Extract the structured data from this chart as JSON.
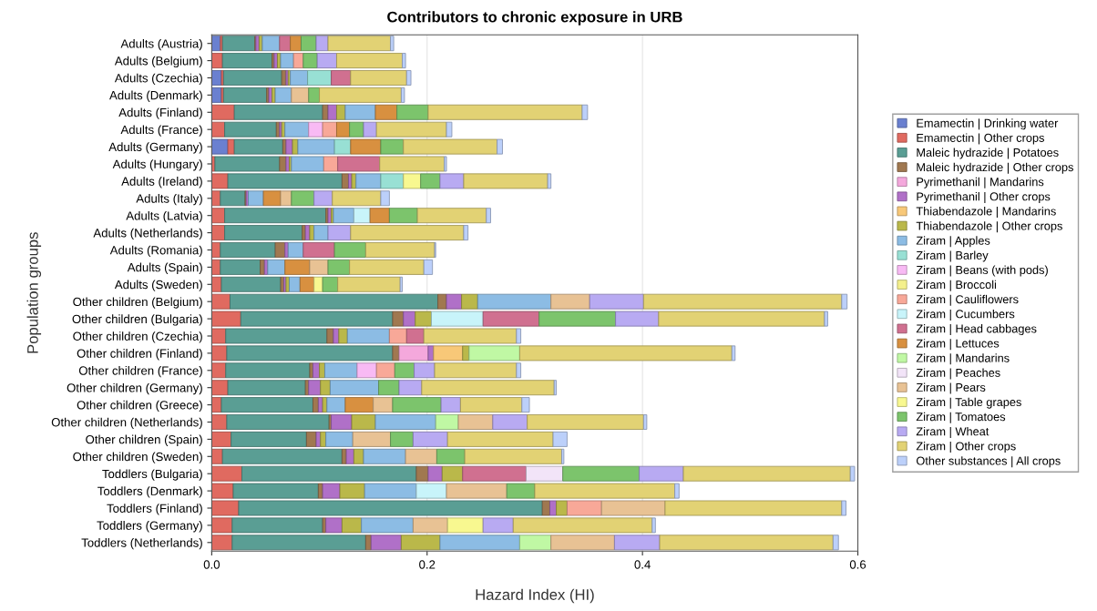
{
  "chart_data": {
    "type": "bar",
    "orientation": "horizontal",
    "stacked": true,
    "title": "Contributors to chronic exposure in URB",
    "xlabel": "Hazard Index (HI)",
    "ylabel": "Population groups",
    "grid": "x",
    "legend": "right",
    "xlim": [
      0,
      0.6
    ],
    "xticks": [
      {
        "value": 0,
        "label": "0.0"
      },
      0.2,
      0.4,
      0.6
    ],
    "categories": [
      "Adults (Austria)",
      "Adults (Belgium)",
      "Adults (Czechia)",
      "Adults (Denmark)",
      "Adults (Finland)",
      "Adults (France)",
      "Adults (Germany)",
      "Adults (Hungary)",
      "Adults (Ireland)",
      "Adults (Italy)",
      "Adults (Latvia)",
      "Adults (Netherlands)",
      "Adults (Romania)",
      "Adults (Spain)",
      "Adults (Sweden)",
      "Other children (Belgium)",
      "Other children (Bulgaria)",
      "Other children (Czechia)",
      "Other children (Finland)",
      "Other children (France)",
      "Other children (Germany)",
      "Other children (Greece)",
      "Other children (Netherlands)",
      "Other children (Spain)",
      "Other children (Sweden)",
      "Toddlers (Bulgaria)",
      "Toddlers (Denmark)",
      "Toddlers (Finland)",
      "Toddlers (Germany)",
      "Toddlers (Netherlands)"
    ],
    "series": [
      {
        "name": "Emamectin | Drinking water",
        "color": "#6a80d0",
        "values": [
          0.008,
          null,
          0.009,
          0.009,
          null,
          null,
          0.015,
          null,
          null,
          null,
          null,
          null,
          null,
          null,
          null,
          null,
          null,
          null,
          null,
          null,
          null,
          null,
          null,
          null,
          null,
          null,
          null,
          null,
          null,
          null
        ]
      },
      {
        "name": "Emamectin | Other crops",
        "color": "#e06a60",
        "values": [
          0.002,
          0.01,
          0.002,
          0.002,
          0.021,
          0.012,
          0.006,
          0.003,
          0.015,
          0.008,
          0.012,
          0.012,
          0.008,
          0.008,
          0.009,
          0.017,
          0.027,
          0.013,
          0.014,
          0.013,
          0.015,
          0.009,
          0.014,
          0.018,
          0.01,
          0.028,
          0.02,
          0.025,
          0.019,
          0.019
        ]
      },
      {
        "name": "Maleic hydrazide | Potatoes",
        "color": "#5a9e94",
        "values": [
          0.03,
          0.046,
          0.054,
          0.04,
          0.082,
          0.048,
          0.045,
          0.06,
          0.106,
          0.023,
          0.094,
          0.072,
          0.051,
          0.037,
          0.055,
          0.193,
          0.141,
          0.094,
          0.154,
          0.078,
          0.072,
          0.085,
          0.095,
          0.07,
          0.111,
          0.162,
          0.079,
          0.282,
          0.084,
          0.124
        ]
      },
      {
        "name": "Maleic hydrazide | Other crops",
        "color": "#a07850",
        "values": [
          0.001,
          0.002,
          0.004,
          0.002,
          0.005,
          0.003,
          0.003,
          0.006,
          0.006,
          0.001,
          0.002,
          0.003,
          0.009,
          0.004,
          0.003,
          0.008,
          0.01,
          0.006,
          0.006,
          0.003,
          0.003,
          0.005,
          0.002,
          0.009,
          0.004,
          0.011,
          0.004,
          0.007,
          0.003,
          0.005
        ]
      },
      {
        "name": "Pyrimethanil | Mandarins",
        "color": "#f4a8dc",
        "values": [
          null,
          null,
          null,
          null,
          null,
          null,
          null,
          null,
          null,
          null,
          null,
          null,
          null,
          null,
          null,
          null,
          null,
          null,
          0.027,
          null,
          null,
          null,
          null,
          null,
          null,
          null,
          null,
          null,
          null,
          null
        ]
      },
      {
        "name": "Pyrimethanil | Other crops",
        "color": "#b070c8",
        "values": [
          0.003,
          0.003,
          0.002,
          0.003,
          0.008,
          0.002,
          0.006,
          0.003,
          0.003,
          0.002,
          0.003,
          0.004,
          0.003,
          0.003,
          0.002,
          0.014,
          0.011,
          0.005,
          0.005,
          0.006,
          0.011,
          0.004,
          0.019,
          0.004,
          0.007,
          0.013,
          0.016,
          0.006,
          0.015,
          0.028
        ]
      },
      {
        "name": "Thiabendazole | Mandarins",
        "color": "#f8c878",
        "values": [
          null,
          null,
          null,
          null,
          null,
          null,
          null,
          null,
          null,
          null,
          null,
          null,
          null,
          null,
          null,
          null,
          null,
          null,
          0.027,
          null,
          null,
          null,
          null,
          null,
          null,
          null,
          null,
          null,
          null,
          null
        ]
      },
      {
        "name": "Thiabendazole | Other crops",
        "color": "#bab84a",
        "values": [
          0.003,
          0.003,
          0.002,
          0.003,
          0.008,
          0.003,
          0.005,
          0.002,
          0.004,
          null,
          0.002,
          0.004,
          null,
          null,
          0.003,
          0.015,
          0.015,
          0.008,
          0.006,
          0.005,
          0.009,
          0.004,
          0.022,
          0.005,
          0.009,
          0.019,
          0.023,
          0.01,
          0.018,
          0.036
        ]
      },
      {
        "name": "Ziram | Apples",
        "color": "#8cbce4",
        "values": [
          0.016,
          0.012,
          0.016,
          0.015,
          0.028,
          0.022,
          0.034,
          0.03,
          0.023,
          0.014,
          0.019,
          0.013,
          0.014,
          0.016,
          0.01,
          0.068,
          null,
          0.039,
          null,
          0.03,
          0.045,
          0.017,
          0.056,
          0.025,
          0.039,
          null,
          0.048,
          null,
          0.048,
          0.074
        ]
      },
      {
        "name": "Ziram | Barley",
        "color": "#98e0d4",
        "values": [
          null,
          null,
          0.022,
          null,
          null,
          null,
          0.015,
          null,
          0.021,
          null,
          null,
          null,
          null,
          null,
          null,
          null,
          null,
          null,
          null,
          null,
          null,
          null,
          null,
          null,
          null,
          null,
          null,
          null,
          null,
          null
        ]
      },
      {
        "name": "Ziram | Beans (with pods)",
        "color": "#f8baf4",
        "values": [
          null,
          null,
          null,
          null,
          null,
          0.013,
          null,
          null,
          null,
          null,
          null,
          null,
          null,
          null,
          null,
          null,
          null,
          null,
          null,
          0.018,
          null,
          null,
          null,
          null,
          null,
          null,
          null,
          null,
          null,
          null
        ]
      },
      {
        "name": "Ziram | Broccoli",
        "color": "#f4f08c",
        "values": [
          null,
          null,
          null,
          null,
          null,
          null,
          null,
          null,
          null,
          null,
          null,
          null,
          null,
          null,
          null,
          null,
          null,
          null,
          null,
          null,
          null,
          null,
          null,
          null,
          null,
          null,
          null,
          null,
          null,
          null
        ]
      },
      {
        "name": "Ziram | Cauliflowers",
        "color": "#f8a898",
        "values": [
          null,
          0.009,
          null,
          null,
          null,
          0.013,
          null,
          0.013,
          null,
          null,
          null,
          null,
          null,
          null,
          null,
          null,
          null,
          0.016,
          null,
          0.017,
          null,
          null,
          null,
          null,
          null,
          null,
          null,
          0.032,
          null,
          null
        ]
      },
      {
        "name": "Ziram | Cucumbers",
        "color": "#c8f4fa",
        "values": [
          null,
          null,
          null,
          null,
          null,
          null,
          null,
          null,
          null,
          null,
          0.015,
          null,
          null,
          null,
          null,
          null,
          0.048,
          null,
          null,
          null,
          null,
          null,
          null,
          null,
          null,
          null,
          0.028,
          null,
          null,
          null
        ]
      },
      {
        "name": "Ziram | Head cabbages",
        "color": "#d07090",
        "values": [
          0.01,
          null,
          0.018,
          null,
          null,
          null,
          null,
          0.039,
          null,
          null,
          null,
          null,
          0.029,
          null,
          null,
          null,
          0.052,
          0.016,
          null,
          null,
          null,
          null,
          null,
          null,
          null,
          0.059,
          null,
          null,
          null,
          null
        ]
      },
      {
        "name": "Ziram | Lettuces",
        "color": "#d89040",
        "values": [
          0.01,
          null,
          null,
          null,
          0.02,
          0.012,
          0.028,
          null,
          null,
          0.016,
          0.018,
          null,
          null,
          0.023,
          0.013,
          null,
          null,
          null,
          null,
          null,
          null,
          0.026,
          null,
          null,
          null,
          null,
          null,
          null,
          null,
          null
        ]
      },
      {
        "name": "Ziram | Mandarins",
        "color": "#c0f8a4",
        "values": [
          null,
          null,
          null,
          null,
          null,
          null,
          null,
          null,
          null,
          null,
          null,
          null,
          null,
          null,
          null,
          null,
          null,
          null,
          0.047,
          null,
          null,
          null,
          0.021,
          null,
          null,
          null,
          null,
          null,
          null,
          0.029
        ]
      },
      {
        "name": "Ziram | Peaches",
        "color": "#f2e4f8",
        "values": [
          null,
          null,
          null,
          null,
          null,
          null,
          null,
          null,
          null,
          null,
          null,
          null,
          null,
          null,
          null,
          null,
          null,
          null,
          null,
          null,
          null,
          null,
          null,
          null,
          null,
          0.034,
          null,
          null,
          null,
          null
        ]
      },
      {
        "name": "Ziram | Pears",
        "color": "#e8c294",
        "values": [
          null,
          null,
          null,
          0.016,
          null,
          null,
          null,
          null,
          null,
          0.01,
          null,
          null,
          null,
          0.017,
          null,
          0.036,
          null,
          null,
          null,
          null,
          null,
          0.018,
          0.032,
          0.035,
          0.029,
          null,
          0.056,
          0.059,
          0.032,
          0.059
        ]
      },
      {
        "name": "Ziram | Table grapes",
        "color": "#f8f890",
        "values": [
          null,
          null,
          null,
          null,
          null,
          null,
          null,
          null,
          0.016,
          null,
          null,
          null,
          null,
          null,
          0.008,
          null,
          null,
          null,
          null,
          null,
          null,
          null,
          null,
          null,
          null,
          null,
          null,
          null,
          0.033,
          null
        ]
      },
      {
        "name": "Ziram | Tomatoes",
        "color": "#7cc46c",
        "values": [
          0.014,
          0.013,
          null,
          0.01,
          0.029,
          0.013,
          0.021,
          null,
          0.018,
          0.021,
          0.026,
          null,
          0.029,
          0.02,
          0.014,
          null,
          0.071,
          null,
          null,
          0.018,
          0.019,
          0.045,
          null,
          0.021,
          0.026,
          0.071,
          0.026,
          null,
          null,
          null
        ]
      },
      {
        "name": "Ziram | Wheat",
        "color": "#b8aaf2",
        "values": [
          0.011,
          0.018,
          null,
          null,
          null,
          0.012,
          null,
          null,
          0.022,
          0.017,
          null,
          0.021,
          null,
          null,
          null,
          0.05,
          0.04,
          null,
          null,
          0.019,
          0.021,
          0.018,
          0.032,
          0.032,
          null,
          0.041,
          null,
          null,
          0.028,
          0.042
        ]
      },
      {
        "name": "Ziram | Other crops",
        "color": "#e2d274",
        "values": [
          0.058,
          0.061,
          0.052,
          0.076,
          0.143,
          0.065,
          0.087,
          0.06,
          0.078,
          0.045,
          0.064,
          0.105,
          0.064,
          0.069,
          0.058,
          0.184,
          0.154,
          0.086,
          0.197,
          0.076,
          0.123,
          0.057,
          0.108,
          0.098,
          0.09,
          0.155,
          0.13,
          0.164,
          0.129,
          0.161
        ]
      },
      {
        "name": "Other substances | All crops",
        "color": "#bcd0fa",
        "values": [
          0.003,
          0.003,
          0.004,
          0.003,
          0.005,
          0.005,
          0.005,
          0.002,
          0.003,
          0.008,
          0.004,
          0.004,
          0.001,
          0.008,
          0.002,
          0.005,
          0.003,
          0.004,
          0.003,
          0.004,
          0.002,
          0.007,
          0.003,
          0.013,
          0.002,
          0.004,
          0.004,
          0.004,
          0.003,
          0.005
        ]
      }
    ]
  }
}
